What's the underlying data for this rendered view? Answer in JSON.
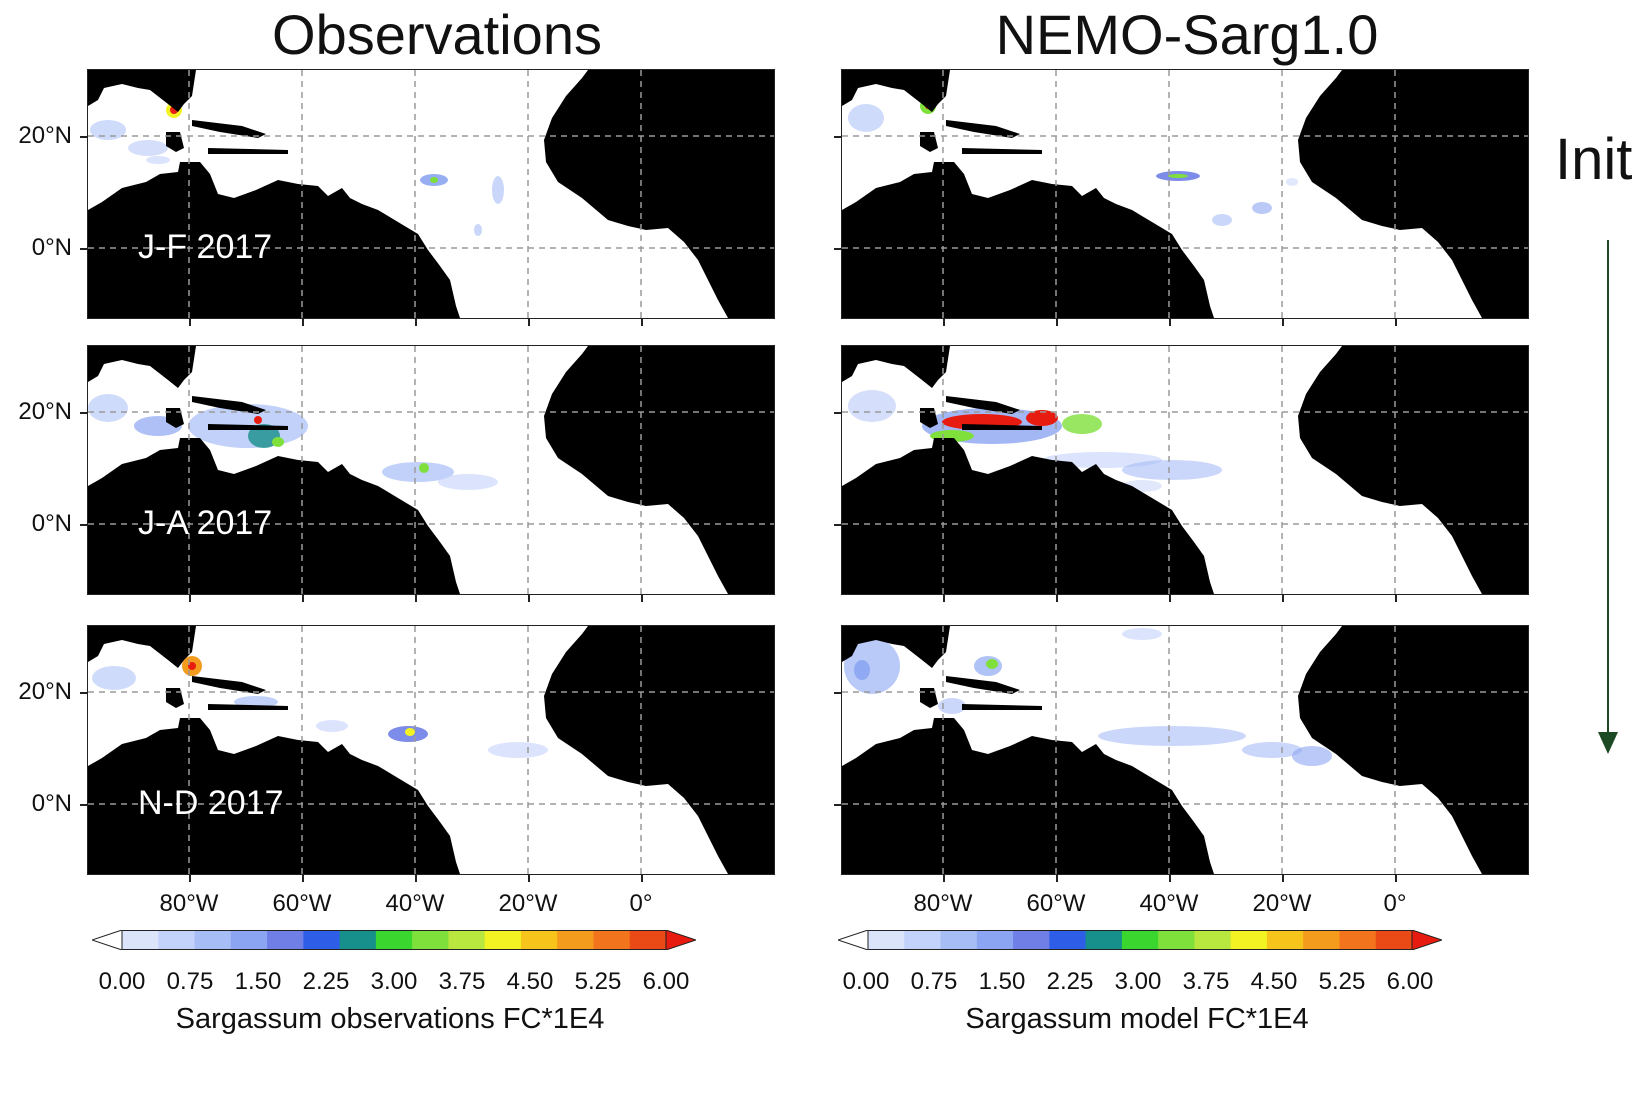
{
  "figure": {
    "col_titles": [
      "Observations",
      "NEMO-Sarg1.0"
    ],
    "init_label": "Init",
    "panel_labels": [
      "J-F 2017",
      "J-A 2017",
      "N-D 2017"
    ],
    "lat_labels": [
      "20°N",
      "0°N"
    ],
    "lon_labels": [
      "80°W",
      "60°W",
      "40°W",
      "20°W",
      "0°"
    ],
    "colorbar": {
      "ticks": [
        "0.00",
        "0.75",
        "1.50",
        "2.25",
        "3.00",
        "3.75",
        "4.50",
        "5.25",
        "6.00"
      ],
      "range": [
        0.0,
        6.0
      ],
      "colors": [
        "#ffffff",
        "#dbe4fb",
        "#c3d2fa",
        "#a7bdf6",
        "#8ca5f2",
        "#6f7fe6",
        "#2e5ee8",
        "#178f8a",
        "#3ad82f",
        "#7fe03b",
        "#b9e63f",
        "#f3f323",
        "#f6c41b",
        "#f49a1c",
        "#f2741c",
        "#ea4a16",
        "#e81b10"
      ],
      "obs_label": "Sargassum observations FC*1E4",
      "model_label": "Sargassum model FC*1E4"
    },
    "arrow_color": "#1b4a24",
    "land_color": "#000000",
    "ocean_color": "#ffffff",
    "grid": true
  }
}
